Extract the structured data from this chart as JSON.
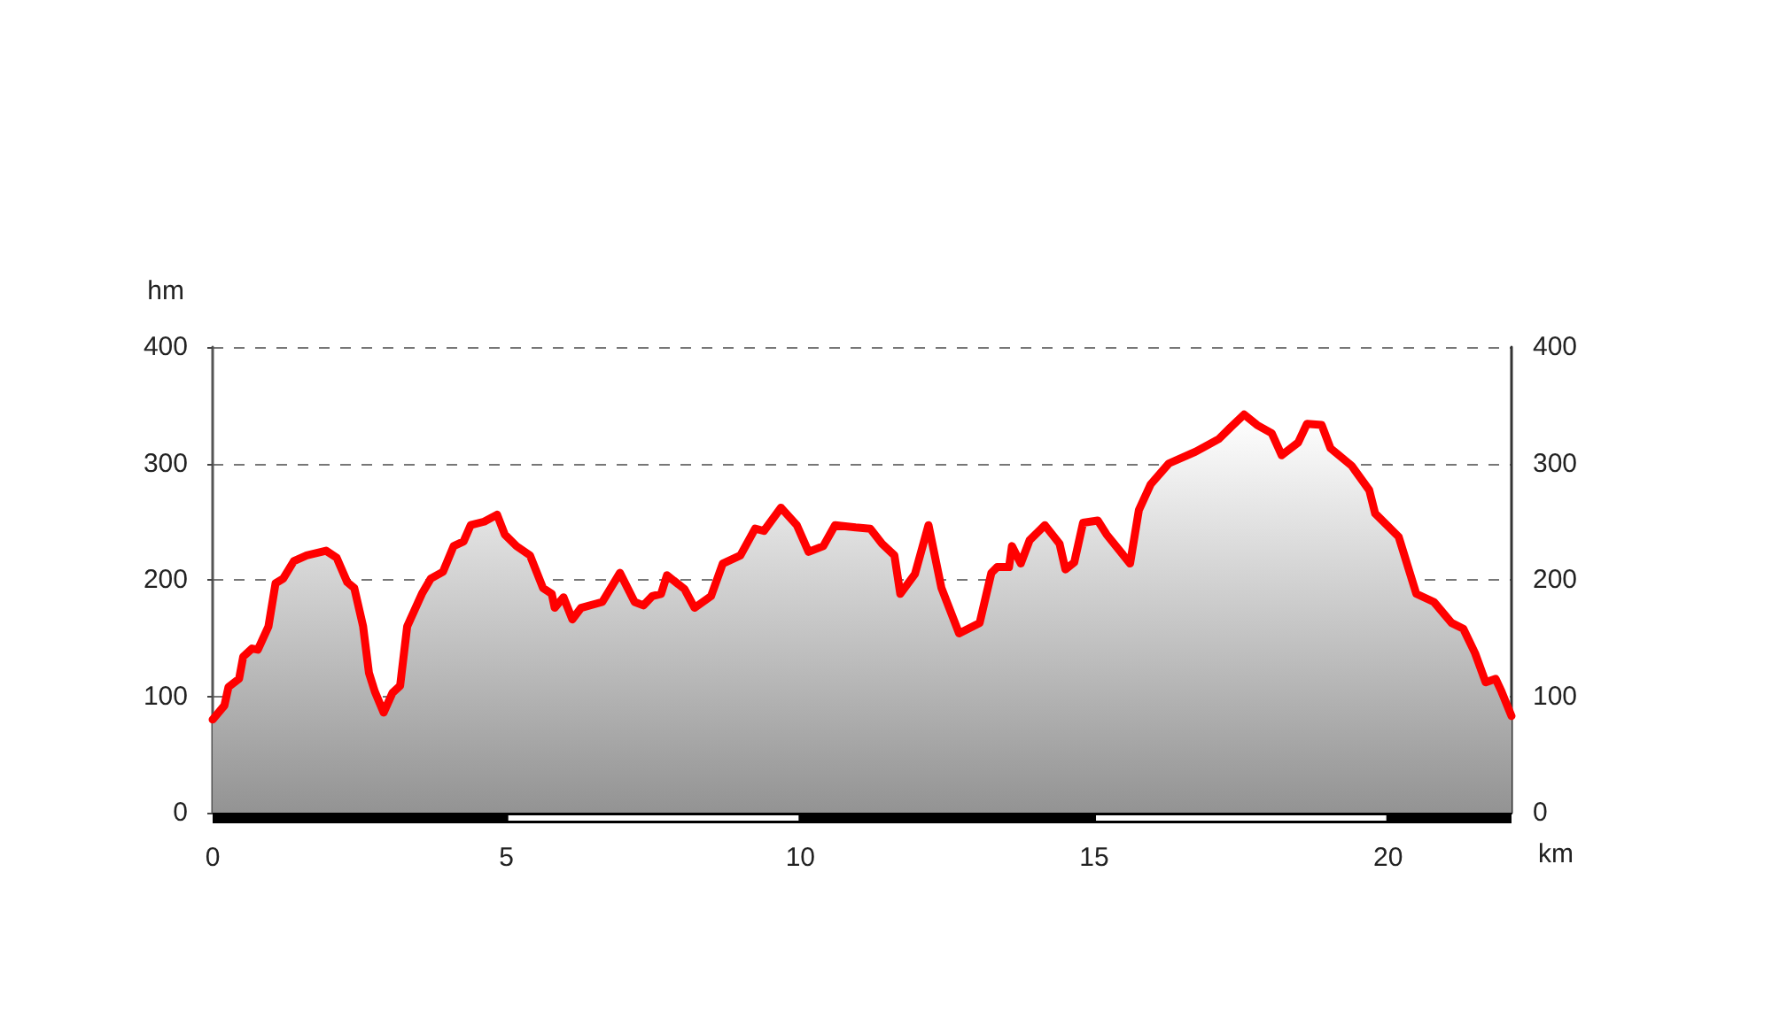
{
  "chart_data": {
    "type": "area",
    "xlabel": "km",
    "ylabel": "hm",
    "x": [
      0,
      0.2,
      0.27,
      0.45,
      0.52,
      0.67,
      0.77,
      0.95,
      1.07,
      1.2,
      1.38,
      1.6,
      1.93,
      2.11,
      2.29,
      2.41,
      2.56,
      2.66,
      2.76,
      2.91,
      3.06,
      3.19,
      3.31,
      3.56,
      3.71,
      3.92,
      4.1,
      4.27,
      4.39,
      4.62,
      4.84,
      4.97,
      5.17,
      5.4,
      5.62,
      5.77,
      5.82,
      5.97,
      6.12,
      6.27,
      6.63,
      6.93,
      7.18,
      7.33,
      7.48,
      7.63,
      7.73,
      8.03,
      8.2,
      8.48,
      8.68,
      8.98,
      9.23,
      9.38,
      9.67,
      9.94,
      10.14,
      10.39,
      10.59,
      10.94,
      11.19,
      11.39,
      11.6,
      11.7,
      11.95,
      12.18,
      12.4,
      12.7,
      13.05,
      13.25,
      13.35,
      13.55,
      13.6,
      13.75,
      13.9,
      14.16,
      14.41,
      14.51,
      14.66,
      14.81,
      15.06,
      15.21,
      15.61,
      15.76,
      15.96,
      16.27,
      16.72,
      17.12,
      17.32,
      17.55,
      17.77,
      18.02,
      18.19,
      18.47,
      18.62,
      18.87,
      19.02,
      19.38,
      19.68,
      19.78,
      20.18,
      20.48,
      20.78,
      21.08,
      21.28,
      21.48,
      21.66,
      21.83,
      21.93,
      22.1
    ],
    "values": [
      80,
      92,
      108,
      115,
      134,
      141,
      140,
      160,
      197,
      201,
      216,
      221,
      225,
      219,
      198,
      193,
      160,
      120,
      104,
      86,
      103,
      109,
      160,
      188,
      201,
      207,
      229,
      233,
      247,
      250,
      256,
      239,
      229,
      221,
      193,
      188,
      176,
      185,
      166,
      176,
      181,
      206,
      181,
      178,
      186,
      188,
      204,
      192,
      176,
      186,
      214,
      221,
      244,
      242,
      262,
      247,
      224,
      229,
      247,
      245,
      244,
      231,
      221,
      188,
      205,
      247,
      193,
      154,
      163,
      206,
      211,
      211,
      229,
      214,
      234,
      247,
      231,
      209,
      215,
      249,
      251,
      239,
      214,
      260,
      282,
      300,
      310,
      321,
      331,
      342,
      333,
      326,
      307,
      318,
      334,
      333,
      313,
      298,
      277,
      257,
      237,
      188,
      181,
      163,
      158,
      137,
      112,
      115,
      104,
      83
    ],
    "color": "#ff0000",
    "xlim": [
      0,
      22.1
    ],
    "xticks": [
      0,
      5,
      10,
      15,
      20
    ],
    "ylim": [
      0,
      400
    ],
    "yticks": [
      0,
      100,
      200,
      300,
      400
    ],
    "y2lim": [
      0,
      400
    ],
    "y2ticks": [
      0,
      100,
      200,
      300,
      400
    ],
    "grid": "y"
  }
}
